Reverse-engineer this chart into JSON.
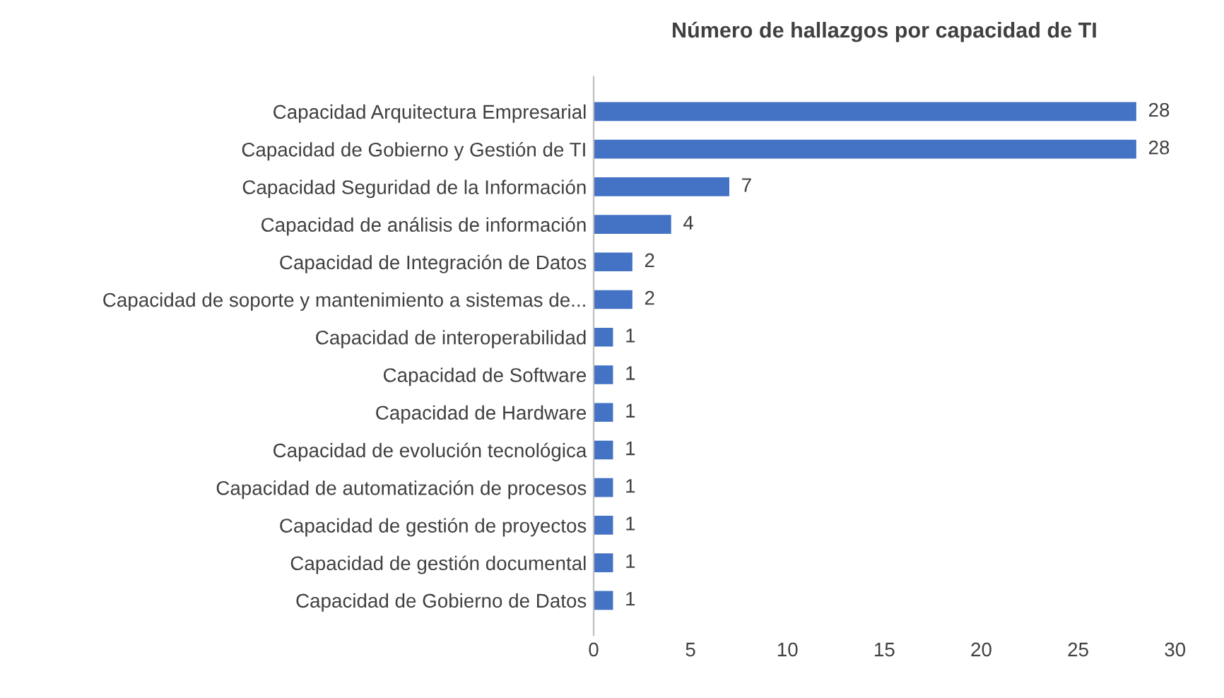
{
  "chart_data": {
    "type": "bar",
    "orientation": "horizontal",
    "title": "Número de hallazgos por capacidad de TI",
    "categories": [
      "Capacidad Arquitectura Empresarial",
      "Capacidad de Gobierno y Gestión de TI",
      "Capacidad Seguridad de la Información",
      "Capacidad de análisis de información",
      "Capacidad de Integración de Datos",
      "Capacidad de soporte y mantenimiento a sistemas de...",
      "Capacidad de interoperabilidad",
      "Capacidad de Software",
      "Capacidad de Hardware",
      "Capacidad de evolución tecnológica",
      "Capacidad de automatización de procesos",
      "Capacidad de gestión de proyectos",
      "Capacidad de gestión documental",
      "Capacidad de Gobierno de Datos"
    ],
    "values": [
      28,
      28,
      7,
      4,
      2,
      2,
      1,
      1,
      1,
      1,
      1,
      1,
      1,
      1
    ],
    "color": "#4472c4",
    "xlim": [
      0,
      30
    ],
    "xticks": [
      0,
      5,
      10,
      15,
      20,
      25,
      30
    ],
    "grid": false,
    "data_labels": true
  }
}
